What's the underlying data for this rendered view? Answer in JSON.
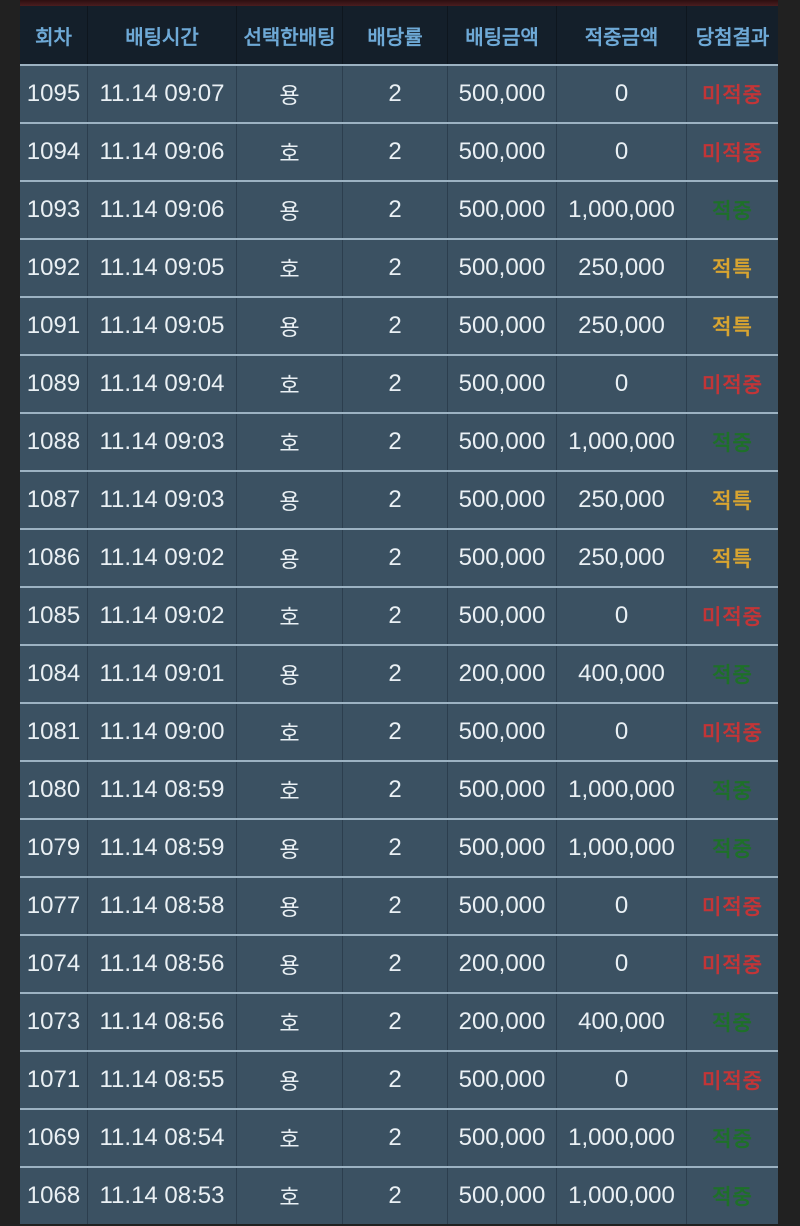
{
  "table": {
    "columns": [
      "회차",
      "배팅시간",
      "선택한배팅",
      "배당률",
      "배팅금액",
      "적중금액",
      "당첨결과"
    ],
    "rows": [
      {
        "round": "1095",
        "time": "11.14 09:07",
        "pick": "용",
        "odds": "2",
        "bet_amount": "500,000",
        "win_amount": "0",
        "result": "미적중",
        "result_type": "miss"
      },
      {
        "round": "1094",
        "time": "11.14 09:06",
        "pick": "호",
        "odds": "2",
        "bet_amount": "500,000",
        "win_amount": "0",
        "result": "미적중",
        "result_type": "miss"
      },
      {
        "round": "1093",
        "time": "11.14 09:06",
        "pick": "용",
        "odds": "2",
        "bet_amount": "500,000",
        "win_amount": "1,000,000",
        "result": "적중",
        "result_type": "hit"
      },
      {
        "round": "1092",
        "time": "11.14 09:05",
        "pick": "호",
        "odds": "2",
        "bet_amount": "500,000",
        "win_amount": "250,000",
        "result": "적특",
        "result_type": "draw"
      },
      {
        "round": "1091",
        "time": "11.14 09:05",
        "pick": "용",
        "odds": "2",
        "bet_amount": "500,000",
        "win_amount": "250,000",
        "result": "적특",
        "result_type": "draw"
      },
      {
        "round": "1089",
        "time": "11.14 09:04",
        "pick": "호",
        "odds": "2",
        "bet_amount": "500,000",
        "win_amount": "0",
        "result": "미적중",
        "result_type": "miss"
      },
      {
        "round": "1088",
        "time": "11.14 09:03",
        "pick": "호",
        "odds": "2",
        "bet_amount": "500,000",
        "win_amount": "1,000,000",
        "result": "적중",
        "result_type": "hit"
      },
      {
        "round": "1087",
        "time": "11.14 09:03",
        "pick": "용",
        "odds": "2",
        "bet_amount": "500,000",
        "win_amount": "250,000",
        "result": "적특",
        "result_type": "draw"
      },
      {
        "round": "1086",
        "time": "11.14 09:02",
        "pick": "용",
        "odds": "2",
        "bet_amount": "500,000",
        "win_amount": "250,000",
        "result": "적특",
        "result_type": "draw"
      },
      {
        "round": "1085",
        "time": "11.14 09:02",
        "pick": "호",
        "odds": "2",
        "bet_amount": "500,000",
        "win_amount": "0",
        "result": "미적중",
        "result_type": "miss"
      },
      {
        "round": "1084",
        "time": "11.14 09:01",
        "pick": "용",
        "odds": "2",
        "bet_amount": "200,000",
        "win_amount": "400,000",
        "result": "적중",
        "result_type": "hit"
      },
      {
        "round": "1081",
        "time": "11.14 09:00",
        "pick": "호",
        "odds": "2",
        "bet_amount": "500,000",
        "win_amount": "0",
        "result": "미적중",
        "result_type": "miss"
      },
      {
        "round": "1080",
        "time": "11.14 08:59",
        "pick": "호",
        "odds": "2",
        "bet_amount": "500,000",
        "win_amount": "1,000,000",
        "result": "적중",
        "result_type": "hit"
      },
      {
        "round": "1079",
        "time": "11.14 08:59",
        "pick": "용",
        "odds": "2",
        "bet_amount": "500,000",
        "win_amount": "1,000,000",
        "result": "적중",
        "result_type": "hit"
      },
      {
        "round": "1077",
        "time": "11.14 08:58",
        "pick": "용",
        "odds": "2",
        "bet_amount": "500,000",
        "win_amount": "0",
        "result": "미적중",
        "result_type": "miss"
      },
      {
        "round": "1074",
        "time": "11.14 08:56",
        "pick": "용",
        "odds": "2",
        "bet_amount": "200,000",
        "win_amount": "0",
        "result": "미적중",
        "result_type": "miss"
      },
      {
        "round": "1073",
        "time": "11.14 08:56",
        "pick": "호",
        "odds": "2",
        "bet_amount": "200,000",
        "win_amount": "400,000",
        "result": "적중",
        "result_type": "hit"
      },
      {
        "round": "1071",
        "time": "11.14 08:55",
        "pick": "용",
        "odds": "2",
        "bet_amount": "500,000",
        "win_amount": "0",
        "result": "미적중",
        "result_type": "miss"
      },
      {
        "round": "1069",
        "time": "11.14 08:54",
        "pick": "호",
        "odds": "2",
        "bet_amount": "500,000",
        "win_amount": "1,000,000",
        "result": "적중",
        "result_type": "hit"
      },
      {
        "round": "1068",
        "time": "11.14 08:53",
        "pick": "호",
        "odds": "2",
        "bet_amount": "500,000",
        "win_amount": "1,000,000",
        "result": "적중",
        "result_type": "hit"
      }
    ]
  },
  "colors": {
    "page_bg": "#212121",
    "top_strip": "#471b1d",
    "header_bg": "#141f2a",
    "header_text": "#6ea9d6",
    "row_bg": "#3b5162",
    "row_divider": "#9cb2c2",
    "column_divider": "#2c3e4e",
    "body_text": "#eaf0f4",
    "result_miss": "#c23537",
    "result_hit": "#1e7029",
    "result_draw": "#d8a430"
  }
}
